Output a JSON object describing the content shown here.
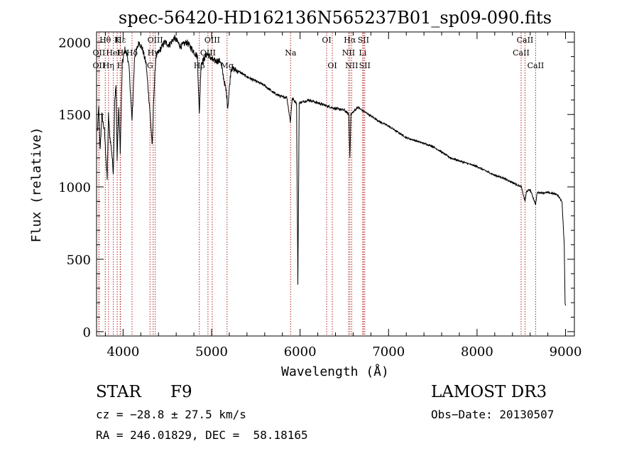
{
  "chart_data": {
    "type": "line",
    "title": "spec-56420-HD162136N565237B01_sp09-090.fits",
    "xlabel": "Wavelength (Å)",
    "ylabel": "Flux (relative)",
    "xlim": [
      3700,
      9100
    ],
    "ylim": [
      -30,
      2070
    ],
    "x_ticks": [
      4000,
      5000,
      6000,
      7000,
      8000,
      9000
    ],
    "x_tick_labels": [
      "4000",
      "5000",
      "6000",
      "7000",
      "8000",
      "9000"
    ],
    "y_ticks": [
      0,
      500,
      1000,
      1500,
      2000
    ],
    "y_tick_labels": [
      "0",
      "500",
      "1000",
      "1500",
      "2000"
    ],
    "grid": false,
    "line_color": "#000000",
    "marker_color": "#b22222",
    "spectrum_anchor_points": [
      [
        3710,
        1380
      ],
      [
        3725,
        1550
      ],
      [
        3740,
        1250
      ],
      [
        3760,
        1500
      ],
      [
        3790,
        1380
      ],
      [
        3820,
        1050
      ],
      [
        3835,
        1500
      ],
      [
        3850,
        1350
      ],
      [
        3870,
        1250
      ],
      [
        3889,
        1100
      ],
      [
        3905,
        1600
      ],
      [
        3920,
        1700
      ],
      [
        3933,
        1200
      ],
      [
        3950,
        1550
      ],
      [
        3968,
        1250
      ],
      [
        3990,
        1850
      ],
      [
        4020,
        1950
      ],
      [
        4050,
        1900
      ],
      [
        4070,
        1800
      ],
      [
        4101,
        1450
      ],
      [
        4130,
        1900
      ],
      [
        4180,
        2000
      ],
      [
        4220,
        1950
      ],
      [
        4260,
        1850
      ],
      [
        4300,
        1550
      ],
      [
        4330,
        1280
      ],
      [
        4345,
        1600
      ],
      [
        4370,
        1900
      ],
      [
        4420,
        1950
      ],
      [
        4470,
        2000
      ],
      [
        4520,
        1980
      ],
      [
        4580,
        2030
      ],
      [
        4650,
        1970
      ],
      [
        4720,
        2000
      ],
      [
        4780,
        1950
      ],
      [
        4840,
        1900
      ],
      [
        4861,
        1500
      ],
      [
        4880,
        1850
      ],
      [
        4950,
        1920
      ],
      [
        5020,
        1870
      ],
      [
        5100,
        1870
      ],
      [
        5167,
        1650
      ],
      [
        5183,
        1550
      ],
      [
        5220,
        1820
      ],
      [
        5300,
        1800
      ],
      [
        5400,
        1760
      ],
      [
        5500,
        1730
      ],
      [
        5600,
        1700
      ],
      [
        5700,
        1650
      ],
      [
        5800,
        1620
      ],
      [
        5850,
        1620
      ],
      [
        5890,
        1450
      ],
      [
        5910,
        1610
      ],
      [
        5960,
        1580
      ],
      [
        5975,
        330
      ],
      [
        5990,
        1580
      ],
      [
        6100,
        1600
      ],
      [
        6200,
        1580
      ],
      [
        6300,
        1560
      ],
      [
        6400,
        1540
      ],
      [
        6500,
        1530
      ],
      [
        6550,
        1500
      ],
      [
        6563,
        1200
      ],
      [
        6575,
        1500
      ],
      [
        6650,
        1550
      ],
      [
        6750,
        1510
      ],
      [
        6900,
        1450
      ],
      [
        7000,
        1420
      ],
      [
        7100,
        1380
      ],
      [
        7200,
        1340
      ],
      [
        7300,
        1320
      ],
      [
        7400,
        1300
      ],
      [
        7500,
        1280
      ],
      [
        7600,
        1240
      ],
      [
        7700,
        1200
      ],
      [
        7800,
        1180
      ],
      [
        7900,
        1160
      ],
      [
        8000,
        1140
      ],
      [
        8100,
        1110
      ],
      [
        8200,
        1080
      ],
      [
        8300,
        1060
      ],
      [
        8400,
        1030
      ],
      [
        8500,
        1000
      ],
      [
        8542,
        900
      ],
      [
        8560,
        970
      ],
      [
        8600,
        980
      ],
      [
        8662,
        880
      ],
      [
        8680,
        960
      ],
      [
        8800,
        960
      ],
      [
        8900,
        950
      ],
      [
        8960,
        900
      ],
      [
        8985,
        600
      ],
      [
        8995,
        200
      ],
      [
        9000,
        180
      ]
    ],
    "line_markers": [
      {
        "label": "Hθ",
        "x": 3798,
        "row": 0
      },
      {
        "label": "OII",
        "x": 3727,
        "row": 1
      },
      {
        "label": "OII",
        "x": 3727,
        "row": 2
      },
      {
        "label": "HeI",
        "x": 3889,
        "row": 1
      },
      {
        "label": "Hη",
        "x": 3835,
        "row": 2
      },
      {
        "label": "K",
        "x": 3933,
        "row": 0
      },
      {
        "label": "H",
        "x": 3968,
        "row": 1
      },
      {
        "label": "H",
        "x": 3968,
        "row": 2
      },
      {
        "label": "Hε",
        "x": 3970,
        "row": 0
      },
      {
        "label": "Hδ",
        "x": 4101,
        "row": 1
      },
      {
        "label": "OIII",
        "x": 4363,
        "row": 0
      },
      {
        "label": "Hγ",
        "x": 4340,
        "row": 1
      },
      {
        "label": "G",
        "x": 4304,
        "row": 2
      },
      {
        "label": "OIII",
        "x": 5007,
        "row": 0
      },
      {
        "label": "OIII",
        "x": 4959,
        "row": 1
      },
      {
        "label": "Hβ",
        "x": 4861,
        "row": 2
      },
      {
        "label": "Mg",
        "x": 5175,
        "row": 2
      },
      {
        "label": "Na",
        "x": 5893,
        "row": 1
      },
      {
        "label": "OI",
        "x": 6300,
        "row": 0
      },
      {
        "label": "OI",
        "x": 6364,
        "row": 2
      },
      {
        "label": "Hα",
        "x": 6563,
        "row": 0
      },
      {
        "label": "NII",
        "x": 6548,
        "row": 1
      },
      {
        "label": "NII",
        "x": 6583,
        "row": 2
      },
      {
        "label": "SII",
        "x": 6716,
        "row": 0
      },
      {
        "label": "Li",
        "x": 6708,
        "row": 1
      },
      {
        "label": "SII",
        "x": 6731,
        "row": 2
      },
      {
        "label": "CaII",
        "x": 8542,
        "row": 0
      },
      {
        "label": "CaII",
        "x": 8498,
        "row": 1
      },
      {
        "label": "CaII",
        "x": 8662,
        "row": 2
      }
    ]
  },
  "info": {
    "object_class": "STAR",
    "subclass": "F9",
    "survey": "LAMOST DR3",
    "redshift": "cz = −28.8 ± 27.5 km/s",
    "obs_date": "Obs−Date: 20130507",
    "coords": "RA = 246.01829, DEC =  58.18165"
  }
}
